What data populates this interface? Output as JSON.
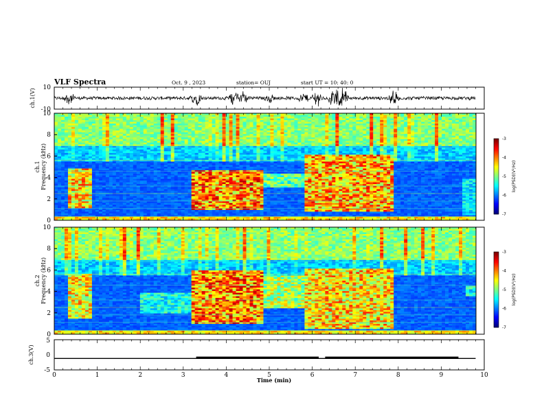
{
  "header": {
    "title": "VLF Spectra",
    "date": "Oct. 9 , 2023",
    "station": "station= OUJ",
    "start": "start UT =  10: 40: 0"
  },
  "chart_data": [
    {
      "type": "line",
      "panel": "waveform-ch1",
      "ylabel": "ch.1(V)",
      "ylim": [
        -10,
        10
      ],
      "yticks": [
        "10",
        "-10"
      ],
      "xlim": [
        0,
        10
      ],
      "baseline": 0,
      "bursts": [
        {
          "t": 0.35,
          "amp": 4
        },
        {
          "t": 3.3,
          "amp": 5
        },
        {
          "t": 4.2,
          "amp": 6
        },
        {
          "t": 4.4,
          "amp": 5
        },
        {
          "t": 5.0,
          "amp": 3
        },
        {
          "t": 5.8,
          "amp": 4
        },
        {
          "t": 6.1,
          "amp": 6
        },
        {
          "t": 6.5,
          "amp": 7
        },
        {
          "t": 6.7,
          "amp": 9
        },
        {
          "t": 7.9,
          "amp": 5
        }
      ]
    },
    {
      "type": "heatmap",
      "panel": "spectrogram-ch1",
      "ylabel": "ch.1\nFrequency (kHz)",
      "ylim": [
        0,
        10
      ],
      "yticks": [
        "0",
        "2",
        "4",
        "6",
        "8",
        "10"
      ],
      "xlim": [
        0,
        10
      ],
      "colorbar": {
        "label": "log(PSD)(V²/Hz)",
        "range": [
          -7,
          -3
        ],
        "ticks": [
          "-3",
          "-4",
          "-5",
          "-6",
          "-7"
        ]
      },
      "bands": [
        {
          "t0": 0.3,
          "t1": 0.9,
          "f0": 1.2,
          "f1": 4.8,
          "level": 0.85
        },
        {
          "t0": 3.2,
          "t1": 4.85,
          "f0": 1.0,
          "f1": 4.6,
          "level": 0.95
        },
        {
          "t0": 4.85,
          "t1": 5.85,
          "f0": 3.0,
          "f1": 4.4,
          "level": 0.6
        },
        {
          "t0": 5.85,
          "t1": 7.9,
          "f0": 0.8,
          "f1": 6.2,
          "level": 0.9
        },
        {
          "t0": 9.5,
          "t1": 9.8,
          "f0": 0.5,
          "f1": 3.8,
          "level": 0.45
        }
      ]
    },
    {
      "type": "heatmap",
      "panel": "spectrogram-ch2",
      "ylabel": "ch.2\nFrequency (kHz)",
      "ylim": [
        0,
        10
      ],
      "yticks": [
        "0",
        "2",
        "4",
        "6",
        "8",
        "10"
      ],
      "xlim": [
        0,
        10
      ],
      "colorbar": {
        "label": "log(PSD)(V²/Hz)",
        "range": [
          -7,
          -3
        ],
        "ticks": [
          "-3",
          "-4",
          "-5",
          "-6",
          "-7"
        ]
      },
      "bands": [
        {
          "t0": 0.3,
          "t1": 0.9,
          "f0": 1.5,
          "f1": 5.6,
          "level": 0.8
        },
        {
          "t0": 2.0,
          "t1": 3.2,
          "f0": 2.0,
          "f1": 3.8,
          "level": 0.5
        },
        {
          "t0": 3.2,
          "t1": 4.85,
          "f0": 1.0,
          "f1": 6.0,
          "level": 0.95
        },
        {
          "t0": 4.85,
          "t1": 5.85,
          "f0": 2.4,
          "f1": 5.5,
          "level": 0.7
        },
        {
          "t0": 5.85,
          "t1": 7.9,
          "f0": 0.5,
          "f1": 6.2,
          "level": 0.85
        },
        {
          "t0": 9.6,
          "t1": 9.8,
          "f0": 3.5,
          "f1": 4.5,
          "level": 0.5
        }
      ]
    },
    {
      "type": "line",
      "panel": "waveform-ch3",
      "ylabel": "ch.3(V)",
      "ylim": [
        -5,
        5
      ],
      "yticks": [
        "5",
        "0",
        "-5"
      ],
      "xlim": [
        0,
        10
      ],
      "xlabel": "Time (min)",
      "xticks": [
        "0",
        "1",
        "2",
        "3",
        "4",
        "5",
        "6",
        "7",
        "8",
        "9",
        "10"
      ],
      "level": -1.2,
      "thick_segments": [
        [
          3.3,
          6.15
        ],
        [
          6.3,
          9.4
        ]
      ]
    }
  ]
}
